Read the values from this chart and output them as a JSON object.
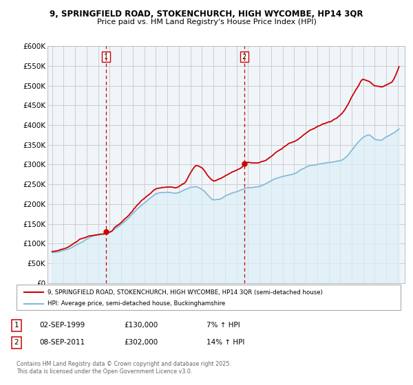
{
  "title_line1": "9, SPRINGFIELD ROAD, STOKENCHURCH, HIGH WYCOMBE, HP14 3QR",
  "title_line2": "Price paid vs. HM Land Registry's House Price Index (HPI)",
  "ylabel_ticks": [
    "£0",
    "£50K",
    "£100K",
    "£150K",
    "£200K",
    "£250K",
    "£300K",
    "£350K",
    "£400K",
    "£450K",
    "£500K",
    "£550K",
    "£600K"
  ],
  "ytick_values": [
    0,
    50000,
    100000,
    150000,
    200000,
    250000,
    300000,
    350000,
    400000,
    450000,
    500000,
    550000,
    600000
  ],
  "xlim_start": 1994.6,
  "xlim_end": 2025.6,
  "ylim_min": 0,
  "ylim_max": 600000,
  "purchase1_year": 1999.67,
  "purchase1_price": 130000,
  "purchase1_label": "1",
  "purchase1_date": "02-SEP-1999",
  "purchase1_hpi": "7% ↑ HPI",
  "purchase2_year": 2011.67,
  "purchase2_price": 302000,
  "purchase2_label": "2",
  "purchase2_date": "08-SEP-2011",
  "purchase2_hpi": "14% ↑ HPI",
  "property_color": "#cc0000",
  "hpi_color": "#7fb9d8",
  "hpi_fill_color": "#ddeef7",
  "background_color": "#ffffff",
  "chart_bg_color": "#f0f5fa",
  "grid_color": "#cccccc",
  "legend_property": "9, SPRINGFIELD ROAD, STOKENCHURCH, HIGH WYCOMBE, HP14 3QR (semi-detached house)",
  "legend_hpi": "HPI: Average price, semi-detached house, Buckinghamshire",
  "footer": "Contains HM Land Registry data © Crown copyright and database right 2025.\nThis data is licensed under the Open Government Licence v3.0.",
  "hpi_data_years": [
    1995.0,
    1995.5,
    1996.0,
    1996.5,
    1997.0,
    1997.5,
    1998.0,
    1998.5,
    1999.0,
    1999.5,
    2000.0,
    2000.5,
    2001.0,
    2001.5,
    2002.0,
    2002.5,
    2003.0,
    2003.5,
    2004.0,
    2004.5,
    2005.0,
    2005.5,
    2006.0,
    2006.5,
    2007.0,
    2007.5,
    2008.0,
    2008.5,
    2009.0,
    2009.5,
    2010.0,
    2010.5,
    2011.0,
    2011.5,
    2012.0,
    2012.5,
    2013.0,
    2013.5,
    2014.0,
    2014.5,
    2015.0,
    2015.5,
    2016.0,
    2016.5,
    2017.0,
    2017.5,
    2018.0,
    2018.5,
    2019.0,
    2019.5,
    2020.0,
    2020.5,
    2021.0,
    2021.5,
    2022.0,
    2022.5,
    2023.0,
    2023.5,
    2024.0,
    2024.5,
    2025.0
  ],
  "hpi_data_values": [
    77000,
    79000,
    83000,
    88000,
    95000,
    103000,
    111000,
    118000,
    122000,
    122000,
    126000,
    138000,
    148000,
    160000,
    175000,
    190000,
    202000,
    214000,
    224000,
    228000,
    228000,
    226000,
    228000,
    234000,
    240000,
    242000,
    236000,
    222000,
    210000,
    212000,
    220000,
    226000,
    232000,
    238000,
    242000,
    244000,
    246000,
    252000,
    260000,
    268000,
    272000,
    276000,
    280000,
    288000,
    294000,
    298000,
    300000,
    302000,
    304000,
    306000,
    308000,
    318000,
    336000,
    355000,
    368000,
    375000,
    365000,
    362000,
    370000,
    378000,
    388000
  ],
  "property_data_years": [
    1995.0,
    1995.5,
    1996.0,
    1996.5,
    1997.0,
    1997.5,
    1998.0,
    1998.5,
    1999.0,
    1999.5,
    1999.67,
    2000.0,
    2000.5,
    2001.0,
    2001.5,
    2002.0,
    2002.5,
    2003.0,
    2003.5,
    2004.0,
    2004.5,
    2005.0,
    2005.5,
    2006.0,
    2006.5,
    2007.0,
    2007.5,
    2008.0,
    2008.5,
    2009.0,
    2009.5,
    2010.0,
    2010.5,
    2011.0,
    2011.5,
    2011.67,
    2012.0,
    2012.5,
    2013.0,
    2013.5,
    2014.0,
    2014.5,
    2015.0,
    2015.5,
    2016.0,
    2016.5,
    2017.0,
    2017.5,
    2018.0,
    2018.5,
    2019.0,
    2019.5,
    2020.0,
    2020.5,
    2021.0,
    2021.5,
    2022.0,
    2022.5,
    2023.0,
    2023.5,
    2024.0,
    2024.5,
    2025.0
  ],
  "property_data_values": [
    80000,
    83000,
    88000,
    95000,
    103000,
    112000,
    118000,
    122000,
    124000,
    126000,
    130000,
    130000,
    142000,
    152000,
    165000,
    180000,
    196000,
    210000,
    222000,
    232000,
    238000,
    240000,
    240000,
    244000,
    252000,
    276000,
    295000,
    288000,
    270000,
    258000,
    262000,
    270000,
    278000,
    285000,
    292000,
    302000,
    302000,
    300000,
    302000,
    308000,
    318000,
    330000,
    340000,
    350000,
    356000,
    366000,
    380000,
    390000,
    396000,
    402000,
    406000,
    414000,
    422000,
    440000,
    468000,
    492000,
    514000,
    510000,
    500000,
    498000,
    502000,
    510000,
    540000
  ]
}
